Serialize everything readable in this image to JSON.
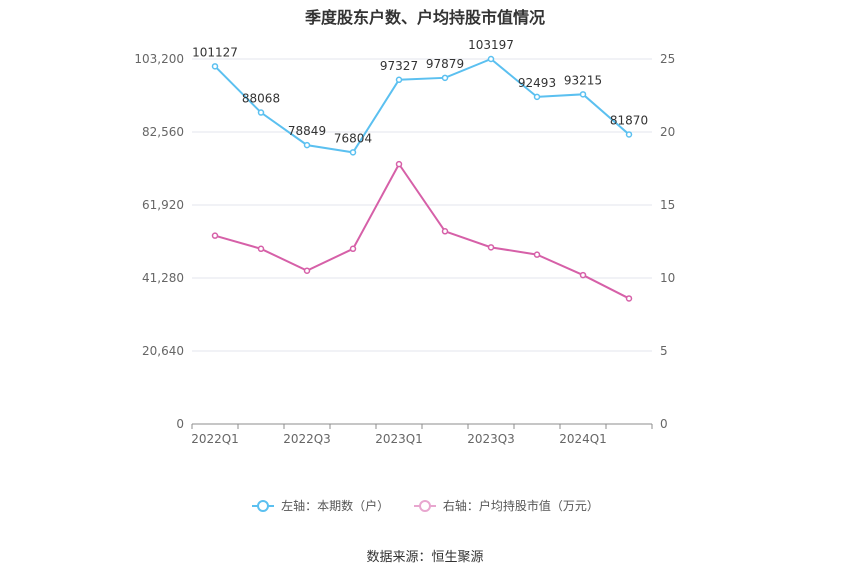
{
  "chart_data": {
    "type": "line",
    "title": "季度股东户数、户均持股市值情况",
    "categories": [
      "2022Q1",
      "2022Q2",
      "2022Q3",
      "2022Q4",
      "2023Q1",
      "2023Q2",
      "2023Q3",
      "2023Q4",
      "2024Q1",
      "2024Q2"
    ],
    "x_tick_labels": [
      "2022Q1",
      "",
      "2022Q3",
      "",
      "2023Q1",
      "",
      "2023Q3",
      "",
      "2024Q1",
      ""
    ],
    "series": [
      {
        "name": "左轴：本期数（户）",
        "axis": "left",
        "color": "#5bc0f0",
        "values": [
          101127,
          88068,
          78849,
          76804,
          97327,
          97879,
          103197,
          92493,
          93215,
          81870
        ],
        "labels": [
          "101127",
          "88068",
          "78849",
          "76804",
          "97327",
          "97879",
          "103197",
          "92493",
          "93215",
          "81870"
        ]
      },
      {
        "name": "右轴：户均持股市值（万元）",
        "axis": "right",
        "color": "#d660a8",
        "values": [
          12.9,
          12.0,
          10.5,
          12.0,
          17.8,
          13.2,
          12.1,
          11.6,
          10.2,
          8.6
        ]
      }
    ],
    "y_left": {
      "min": 0,
      "max": 103200,
      "ticks": [
        0,
        20640,
        41280,
        61920,
        82560,
        103200
      ],
      "tick_labels": [
        "0",
        "20,640",
        "41,280",
        "61,920",
        "82,560",
        "103,200"
      ]
    },
    "y_right": {
      "min": 0,
      "max": 25,
      "ticks": [
        0,
        5,
        10,
        15,
        20,
        25
      ],
      "tick_labels": [
        "0",
        "5",
        "10",
        "15",
        "20",
        "25"
      ]
    },
    "grid": true,
    "legend_position": "bottom",
    "source": "数据来源：恒生聚源"
  }
}
